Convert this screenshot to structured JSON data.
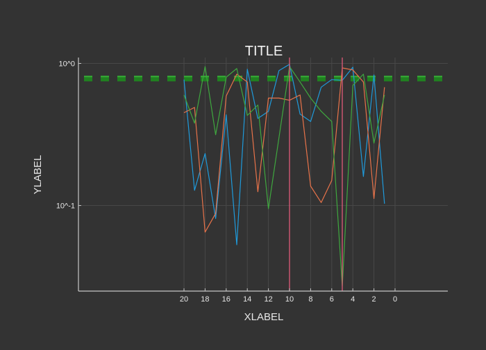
{
  "colors": {
    "background": "#333333",
    "axis": "#c8c8c8",
    "grid": "#484848",
    "text": "#e6e6e6",
    "hline": "#1f8a1f",
    "hline_light": "#36b336",
    "vline": "#e05a7a"
  },
  "chart_data": {
    "type": "line",
    "title": "TITLE",
    "xlabel": "XLABEL",
    "ylabel": "YLABEL",
    "x_axis": {
      "reversed": true,
      "range": [
        30,
        -5
      ],
      "ticks": [
        20,
        18,
        16,
        14,
        12,
        10,
        8,
        6,
        4,
        2,
        0
      ]
    },
    "y_axis": {
      "scale": "log",
      "range": [
        0.025,
        1.1
      ],
      "ticks": [
        1.0,
        0.1
      ],
      "tick_labels": [
        "10^0",
        "10^-1"
      ]
    },
    "grid": true,
    "legend": "none",
    "series": [
      {
        "color": "#1f9bdc",
        "x": [
          20,
          19,
          18,
          17,
          16,
          15,
          14,
          13,
          12,
          11,
          10,
          9,
          8,
          7,
          6,
          5,
          4,
          3,
          2,
          1
        ],
        "y": [
          0.77,
          0.128,
          0.232,
          0.081,
          0.435,
          0.053,
          0.91,
          0.41,
          0.46,
          0.89,
          0.985,
          0.44,
          0.39,
          0.68,
          0.77,
          0.76,
          0.94,
          0.16,
          0.83,
          0.103
        ]
      },
      {
        "color": "#e8734a",
        "x": [
          20,
          19,
          18,
          17,
          16,
          15,
          14,
          13,
          12,
          11,
          10,
          9,
          8,
          7,
          6,
          5,
          4,
          3,
          2,
          1
        ],
        "y": [
          0.45,
          0.49,
          0.065,
          0.088,
          0.59,
          0.84,
          0.74,
          0.125,
          0.57,
          0.57,
          0.55,
          0.6,
          0.137,
          0.105,
          0.15,
          0.93,
          0.9,
          0.74,
          0.112,
          0.68
        ]
      },
      {
        "color": "#3fa83f",
        "x": [
          20,
          19,
          18,
          17,
          16,
          15,
          14,
          13,
          12,
          11,
          10,
          9,
          8,
          7,
          6,
          5,
          4,
          3,
          2,
          1
        ],
        "y": [
          0.6,
          0.38,
          0.95,
          0.315,
          0.8,
          0.92,
          0.43,
          0.51,
          0.095,
          0.3,
          0.95,
          0.74,
          0.57,
          0.46,
          0.39,
          0.027,
          0.7,
          0.84,
          0.275,
          0.6
        ]
      }
    ],
    "hlines": [
      {
        "y": 0.8,
        "style": "dashed",
        "color": "#1f8a1f"
      }
    ],
    "vlines": [
      {
        "x": 10,
        "color": "#e05a7a"
      },
      {
        "x": 5,
        "color": "#e05a7a"
      }
    ]
  }
}
